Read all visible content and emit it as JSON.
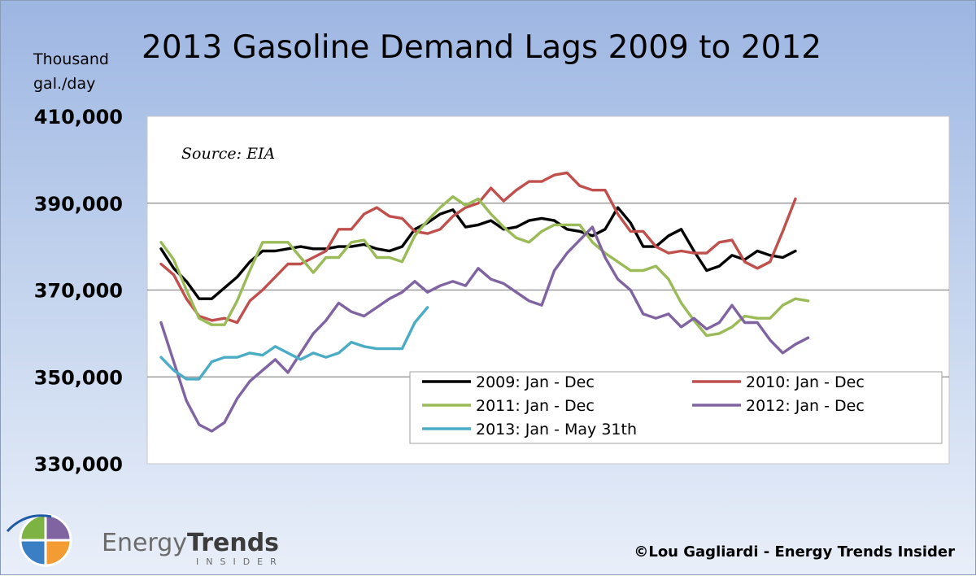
{
  "chart_data": {
    "type": "line",
    "title": "2013 Gasoline Demand Lags 2009 to 2012",
    "ylabel_line1": "Thousand",
    "ylabel_line2": "gal./day",
    "ylim": [
      330000,
      410000
    ],
    "yticks": [
      "410,000",
      "390,000",
      "370,000",
      "350,000",
      "330,000"
    ],
    "ytick_values": [
      410000,
      390000,
      370000,
      350000,
      330000
    ],
    "grid": true,
    "annotation": "Source: EIA",
    "legend_position": "bottom-right",
    "x_count": 53,
    "series": [
      {
        "name": "2009: Jan - Dec",
        "color": "#000000",
        "values": [
          379500,
          375000,
          372000,
          368000,
          368000,
          370500,
          373000,
          376500,
          379000,
          379000,
          379500,
          380000,
          379500,
          379500,
          380000,
          380000,
          380500,
          379500,
          379000,
          380000,
          384000,
          385500,
          387500,
          388500,
          384500,
          385000,
          386000,
          384000,
          384500,
          386000,
          386500,
          386000,
          384000,
          383500,
          382500,
          384000,
          389000,
          385500,
          380000,
          380000,
          382500,
          384000,
          379000,
          374500,
          375500,
          378000,
          377000,
          379000,
          378000,
          377500,
          379000
        ]
      },
      {
        "name": "2010: Jan - Dec",
        "color": "#c0504d",
        "values": [
          376000,
          373500,
          368000,
          364000,
          363000,
          363500,
          362500,
          367500,
          370000,
          373000,
          376000,
          376000,
          377500,
          379000,
          384000,
          384000,
          387500,
          389000,
          387000,
          386500,
          383500,
          383000,
          384000,
          387000,
          389000,
          390000,
          393500,
          390500,
          393000,
          395000,
          395000,
          396500,
          397000,
          394000,
          393000,
          393000,
          387500,
          383500,
          383500,
          380000,
          378500,
          379000,
          378500,
          378500,
          381000,
          381500,
          376500,
          375000,
          376500,
          383500,
          391000
        ]
      },
      {
        "name": "2011: Jan - Dec",
        "color": "#9bbb59",
        "values": [
          381000,
          377000,
          370000,
          363500,
          362000,
          362000,
          367500,
          374500,
          381000,
          381000,
          381000,
          377500,
          374000,
          377500,
          377500,
          381000,
          381500,
          377500,
          377500,
          376500,
          382500,
          386000,
          389000,
          391500,
          389500,
          391000,
          387500,
          384500,
          382000,
          381000,
          383500,
          385000,
          385000,
          385000,
          381000,
          378500,
          376500,
          374500,
          374500,
          375500,
          372500,
          367000,
          363000,
          359500,
          360000,
          361500,
          364000,
          363500,
          363500,
          366500,
          368000,
          367500
        ]
      },
      {
        "name": "2012: Jan - Dec",
        "color": "#8064a2",
        "values": [
          362500,
          353500,
          344500,
          339000,
          337500,
          339500,
          345000,
          349000,
          351500,
          354000,
          351000,
          355500,
          360000,
          363000,
          367000,
          365000,
          364000,
          366000,
          368000,
          369500,
          372000,
          369500,
          371000,
          372000,
          371000,
          375000,
          372500,
          371500,
          369500,
          367500,
          366500,
          374500,
          378500,
          381500,
          384500,
          377500,
          372500,
          370000,
          364500,
          363500,
          364500,
          361500,
          363500,
          361000,
          362500,
          366500,
          362500,
          362500,
          358500,
          355500,
          357500,
          359000
        ]
      },
      {
        "name": "2013: Jan - May 31th",
        "color": "#4bacc6",
        "values": [
          354500,
          351500,
          349500,
          349500,
          353500,
          354500,
          354500,
          355500,
          355000,
          357000,
          355500,
          354000,
          355500,
          354500,
          355500,
          358000,
          357000,
          356500,
          356500,
          356500,
          362500,
          366000
        ]
      }
    ]
  },
  "brand": {
    "name_light": "Energy",
    "name_bold": "Trends",
    "sub": "INSIDER"
  },
  "credit": "©Lou Gagliardi - Energy Trends Insider"
}
